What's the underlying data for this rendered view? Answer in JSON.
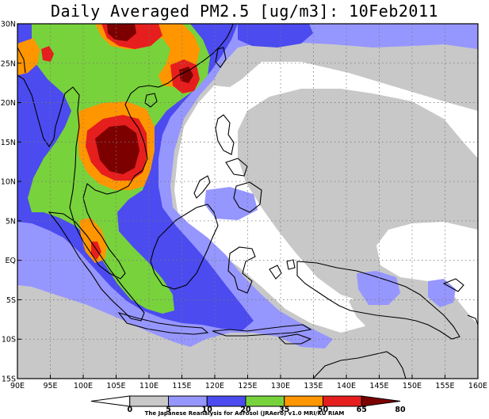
{
  "title": "Daily Averaged PM2.5 [ug/m3]: 10Feb2011",
  "credit": "The Japanese Reanalysis for Aerosol (JRAero) v1.0 MRI/KU RIAM",
  "lon_range": [
    90,
    160
  ],
  "lat_range": [
    -15,
    30
  ],
  "x_ticks": [
    "90E",
    "95E",
    "100E",
    "105E",
    "110E",
    "115E",
    "120E",
    "125E",
    "130E",
    "135E",
    "140E",
    "145E",
    "150E",
    "155E",
    "160E"
  ],
  "y_ticks": [
    "30N",
    "25N",
    "20N",
    "15N",
    "10N",
    "5N",
    "EQ",
    "5S",
    "10S",
    "15S"
  ],
  "legend": {
    "levels": [
      "0",
      "5",
      "10",
      "20",
      "35",
      "50",
      "65",
      "80"
    ],
    "colors": [
      "#ffffff",
      "#c8c8c8",
      "#9696ff",
      "#4b4bf0",
      "#78d23c",
      "#ff9600",
      "#e61e1e",
      "#7d0000"
    ]
  }
}
